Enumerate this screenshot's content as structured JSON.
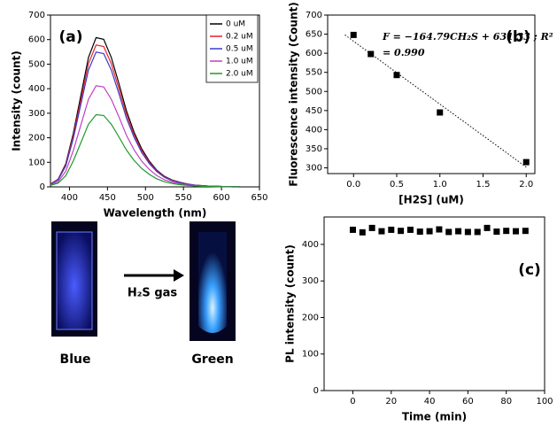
{
  "chart_data": [
    {
      "type": "line",
      "panel_label": "(a)",
      "x_label": "Wavelength (nm)",
      "y_label": "Intensity (count)",
      "x": [
        375,
        385,
        395,
        405,
        415,
        425,
        435,
        445,
        455,
        465,
        475,
        485,
        495,
        505,
        515,
        525,
        535,
        545,
        555,
        565,
        575,
        585,
        595,
        605,
        615,
        625
      ],
      "series": [
        {
          "name": "0 uM",
          "color": "#000000",
          "values": [
            12,
            31,
            93,
            217,
            372,
            527,
            608,
            601,
            527,
            422,
            310,
            223,
            155,
            105,
            68,
            43,
            28,
            19,
            12,
            7,
            5,
            3,
            2,
            1,
            1,
            0
          ]
        },
        {
          "name": "0.2 uM",
          "color": "#e8202a",
          "values": [
            12,
            30,
            89,
            207,
            354,
            502,
            578,
            572,
            502,
            401,
            295,
            212,
            148,
            100,
            65,
            41,
            27,
            18,
            12,
            7,
            5,
            3,
            2,
            1,
            1,
            0
          ]
        },
        {
          "name": "0.5 uM",
          "color": "#3a3ac8",
          "values": [
            11,
            28,
            84,
            196,
            336,
            476,
            549,
            543,
            476,
            381,
            280,
            202,
            140,
            95,
            62,
            39,
            25,
            17,
            11,
            7,
            4,
            3,
            2,
            1,
            1,
            0
          ]
        },
        {
          "name": "1.0 uM",
          "color": "#c040c0",
          "values": [
            8,
            21,
            63,
            147,
            252,
            357,
            412,
            407,
            357,
            286,
            210,
            151,
            105,
            71,
            46,
            29,
            19,
            13,
            8,
            5,
            3,
            2,
            1,
            1,
            0,
            0
          ]
        },
        {
          "name": "2.0 uM",
          "color": "#1e9a2a",
          "values": [
            6,
            15,
            45,
            105,
            180,
            255,
            294,
            291,
            255,
            204,
            150,
            108,
            75,
            51,
            33,
            21,
            14,
            9,
            6,
            4,
            2,
            2,
            1,
            1,
            0,
            0
          ]
        }
      ],
      "xlim": [
        375,
        650
      ],
      "xticks": [
        400,
        450,
        500,
        550,
        600,
        650
      ],
      "ylim": [
        0,
        700
      ],
      "yticks": [
        0,
        100,
        200,
        300,
        400,
        500,
        600,
        700
      ],
      "legend": "upper right"
    },
    {
      "type": "scatter",
      "panel_label": "(b)",
      "x_label": "[H2S] (uM)",
      "y_label": "Fluorescence intensity (Count)",
      "x": [
        0,
        0.2,
        0.5,
        1.0,
        2.0
      ],
      "values": [
        648,
        598,
        543,
        445,
        315
      ],
      "color": "#000000",
      "fit_line": {
        "x": [
          -0.1,
          2.0
        ],
        "values": [
          648,
          302
        ]
      },
      "annotation": [
        "F = −164.79CH₂S + 631.33 ; R²",
        "= 0.990"
      ],
      "xlim": [
        -0.3,
        2.1
      ],
      "xticks": [
        {
          "value": 0,
          "label": "0.0"
        },
        0.5,
        {
          "value": 1,
          "label": "1.0"
        },
        1.5,
        {
          "value": 2,
          "label": "2.0"
        }
      ],
      "ylim": [
        285,
        700
      ],
      "yticks": [
        300,
        350,
        400,
        450,
        500,
        550,
        600,
        650,
        700
      ]
    },
    {
      "type": "scatter",
      "panel_label": "(c)",
      "x_label": "Time (min)",
      "y_label": "PL intensity (count)",
      "x": [
        0,
        5,
        10,
        15,
        20,
        25,
        30,
        35,
        40,
        45,
        50,
        55,
        60,
        65,
        70,
        75,
        80,
        85,
        90
      ],
      "values": [
        440,
        433,
        445,
        436,
        440,
        437,
        440,
        435,
        436,
        441,
        434,
        436,
        434,
        434,
        445,
        435,
        437,
        436,
        437
      ],
      "color": "#000000",
      "xlim": [
        -15,
        100
      ],
      "xticks": [
        0,
        20,
        40,
        60,
        80,
        100
      ],
      "ylim": [
        0,
        475
      ],
      "yticks": [
        0,
        100,
        200,
        300,
        400
      ]
    }
  ],
  "photo": {
    "before_label": "Blue",
    "arrow_label": "H₂S gas",
    "after_label": "Green"
  }
}
